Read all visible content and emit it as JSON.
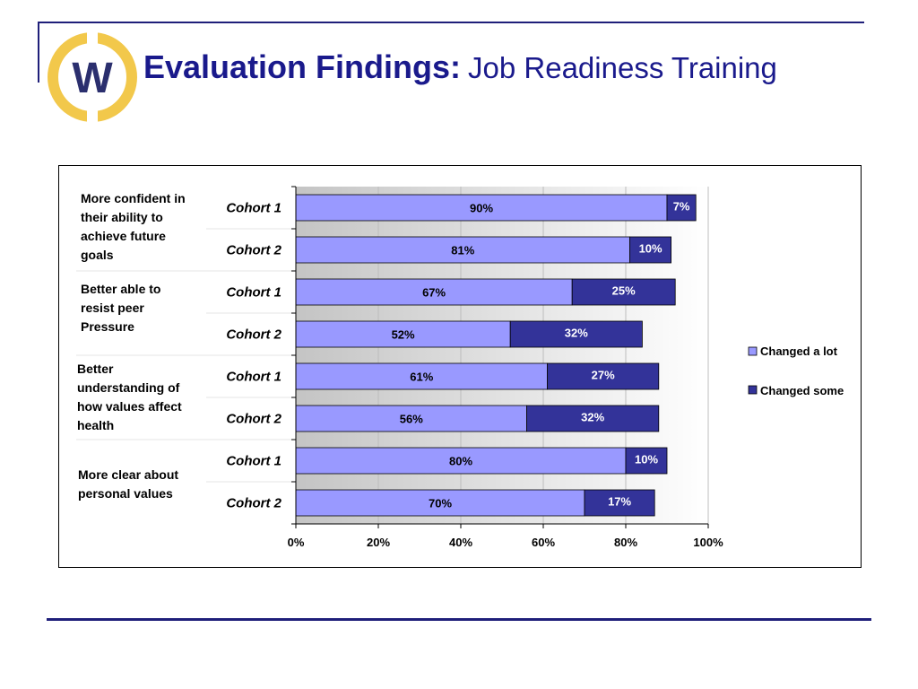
{
  "title": {
    "bold": "Evaluation Findings:",
    "rest": "Job Readiness Training"
  },
  "logo": {
    "icon": "w-logo-icon",
    "letter": "W",
    "ring_color": "#f2c84b",
    "letter_color": "#2b2f6e"
  },
  "colors": {
    "rules": "#1f1f7a",
    "changed_a_lot": "#9999ff",
    "changed_some": "#333399",
    "title": "#1a1a8c"
  },
  "chart_data": {
    "type": "bar",
    "orientation": "horizontal",
    "stacked": true,
    "groups": [
      {
        "label_lines": [
          "More confident in",
          "their ability to",
          "achieve future",
          "goals"
        ],
        "rows": [
          "Cohort 1",
          "Cohort 2"
        ]
      },
      {
        "label_lines": [
          "Better able to",
          "resist peer",
          "Pressure"
        ],
        "rows": [
          "Cohort 1",
          "Cohort 2"
        ]
      },
      {
        "label_lines": [
          "Better",
          "understanding of",
          "how values affect",
          "health"
        ],
        "rows": [
          "Cohort 1",
          "Cohort 2"
        ]
      },
      {
        "label_lines": [
          "More clear about",
          "personal values"
        ],
        "rows": [
          "Cohort 1",
          "Cohort 2"
        ]
      }
    ],
    "categories": [
      "Cohort 1",
      "Cohort 2",
      "Cohort 1",
      "Cohort 2",
      "Cohort 1",
      "Cohort 2",
      "Cohort 1",
      "Cohort 2"
    ],
    "series": [
      {
        "name": "Changed a lot",
        "values": [
          90,
          81,
          67,
          52,
          61,
          56,
          80,
          70
        ],
        "labels": [
          "90%",
          "81%",
          "67%",
          "52%",
          "61%",
          "56%",
          "80%",
          "70%"
        ]
      },
      {
        "name": "Changed some",
        "values": [
          7,
          10,
          25,
          32,
          27,
          32,
          10,
          17
        ],
        "labels": [
          "7%",
          "10%",
          "25%",
          "32%",
          "27%",
          "32%",
          "10%",
          "17%"
        ]
      }
    ],
    "xlim": [
      0,
      100
    ],
    "xticks": [
      "0%",
      "20%",
      "40%",
      "60%",
      "80%",
      "100%"
    ],
    "grid": true,
    "legend": "right"
  }
}
